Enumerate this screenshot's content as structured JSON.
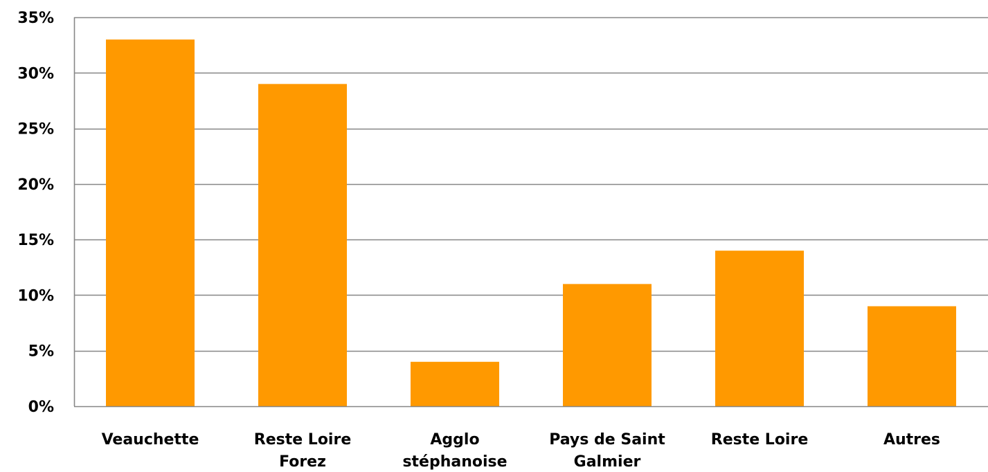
{
  "chart_data": {
    "type": "bar",
    "categories": [
      [
        "Veauchette"
      ],
      [
        "Reste Loire",
        "Forez"
      ],
      [
        "Agglo",
        "stéphanoise"
      ],
      [
        "Pays de Saint",
        "Galmier"
      ],
      [
        "Reste Loire"
      ],
      [
        "Autres"
      ]
    ],
    "values": [
      33,
      29,
      4,
      11,
      14,
      9
    ],
    "ylim": [
      0,
      35
    ],
    "yticks": [
      0,
      5,
      10,
      15,
      20,
      25,
      30,
      35
    ],
    "ytick_labels": [
      "0%",
      "5%",
      "10%",
      "15%",
      "20%",
      "25%",
      "30%",
      "35%"
    ],
    "grid": true,
    "bar_color": "#FF9900",
    "grid_color": "#868686",
    "title": "",
    "xlabel": "",
    "ylabel": ""
  }
}
